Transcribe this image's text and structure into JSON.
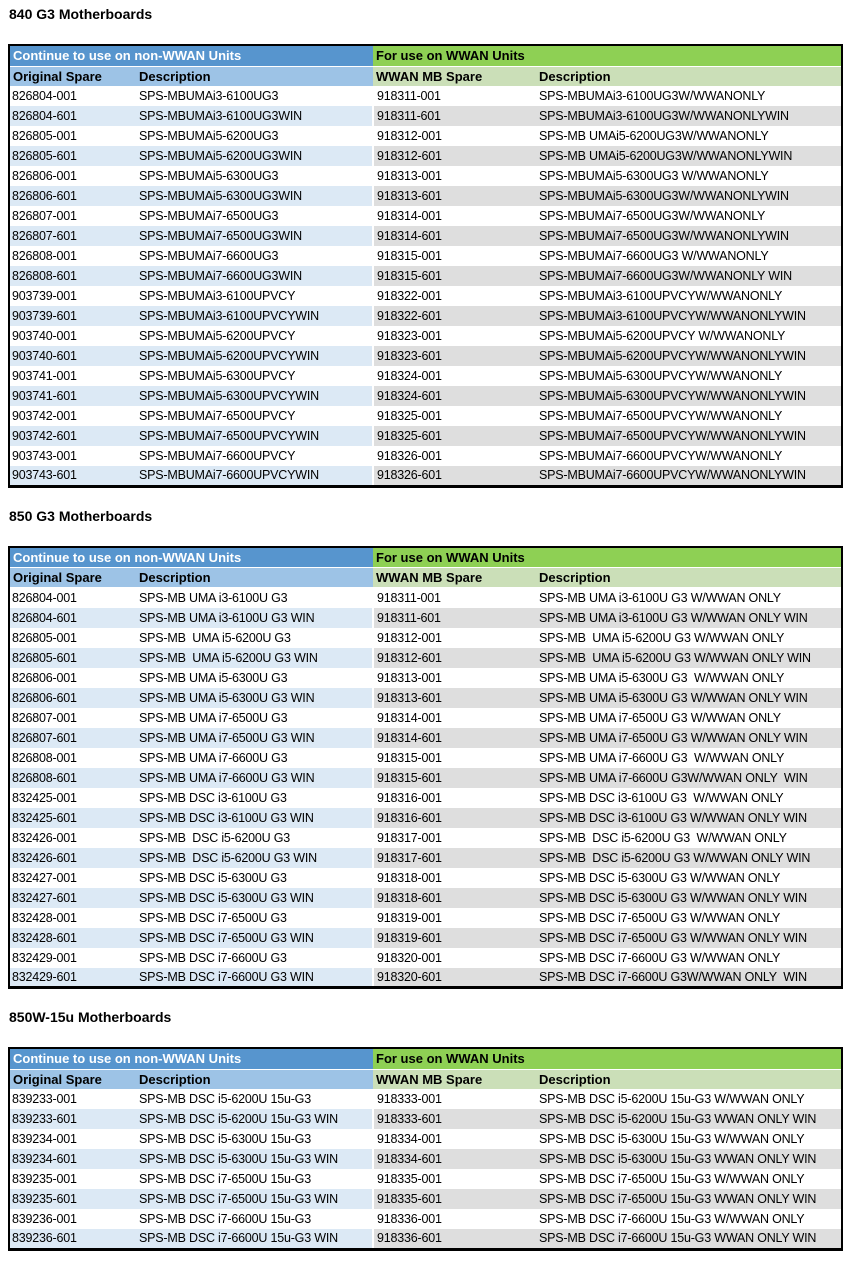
{
  "colors": {
    "header_blue": "#5795CE",
    "header_blue_light": "#9DC3E6",
    "header_green": "#8ED054",
    "header_green_light": "#CBDFB8",
    "band_blue": "#DCE9F5",
    "band_gray": "#DEDEDE",
    "border_black": "#000000"
  },
  "table_headers": {
    "left_group": "Continue to use on non-WWAN Units",
    "right_group": "For use on WWAN Units",
    "original_spare": "Original Spare",
    "description": "Description",
    "wwan_mb_spare": "WWAN MB Spare",
    "description2": "Description"
  },
  "sections": [
    {
      "title": "840 G3 Motherboards",
      "rows": [
        [
          "826804-001",
          "SPS-MBUMAi3-6100UG3",
          "918311-001",
          "SPS-MBUMAi3-6100UG3W/WWANONLY"
        ],
        [
          "826804-601",
          "SPS-MBUMAi3-6100UG3WIN",
          "918311-601",
          "SPS-MBUMAi3-6100UG3W/WWANONLYWIN"
        ],
        [
          "826805-001",
          "SPS-MBUMAi5-6200UG3",
          "918312-001",
          "SPS-MB UMAi5-6200UG3W/WWANONLY"
        ],
        [
          "826805-601",
          "SPS-MBUMAi5-6200UG3WIN",
          "918312-601",
          "SPS-MB UMAi5-6200UG3W/WWANONLYWIN"
        ],
        [
          "826806-001",
          "SPS-MBUMAi5-6300UG3",
          "918313-001",
          "SPS-MBUMAi5-6300UG3 W/WWANONLY"
        ],
        [
          "826806-601",
          "SPS-MBUMAi5-6300UG3WIN",
          "918313-601",
          "SPS-MBUMAi5-6300UG3W/WWANONLYWIN"
        ],
        [
          "826807-001",
          "SPS-MBUMAi7-6500UG3",
          "918314-001",
          "SPS-MBUMAi7-6500UG3W/WWANONLY"
        ],
        [
          "826807-601",
          "SPS-MBUMAi7-6500UG3WIN",
          "918314-601",
          "SPS-MBUMAi7-6500UG3W/WWANONLYWIN"
        ],
        [
          "826808-001",
          "SPS-MBUMAi7-6600UG3",
          "918315-001",
          "SPS-MBUMAi7-6600UG3 W/WWANONLY"
        ],
        [
          "826808-601",
          "SPS-MBUMAi7-6600UG3WIN",
          "918315-601",
          "SPS-MBUMAi7-6600UG3W/WWANONLY WIN"
        ],
        [
          "903739-001",
          "SPS-MBUMAi3-6100UPVCY",
          "918322-001",
          "SPS-MBUMAi3-6100UPVCYW/WWANONLY"
        ],
        [
          "903739-601",
          "SPS-MBUMAi3-6100UPVCYWIN",
          "918322-601",
          "SPS-MBUMAi3-6100UPVCYW/WWANONLYWIN"
        ],
        [
          "903740-001",
          "SPS-MBUMAi5-6200UPVCY",
          "918323-001",
          "SPS-MBUMAi5-6200UPVCY W/WWANONLY"
        ],
        [
          "903740-601",
          "SPS-MBUMAi5-6200UPVCYWIN",
          "918323-601",
          "SPS-MBUMAi5-6200UPVCYW/WWANONLYWIN"
        ],
        [
          "903741-001",
          "SPS-MBUMAi5-6300UPVCY",
          "918324-001",
          "SPS-MBUMAi5-6300UPVCYW/WWANONLY"
        ],
        [
          "903741-601",
          "SPS-MBUMAi5-6300UPVCYWIN",
          "918324-601",
          "SPS-MBUMAi5-6300UPVCYW/WWANONLYWIN"
        ],
        [
          "903742-001",
          "SPS-MBUMAi7-6500UPVCY",
          "918325-001",
          "SPS-MBUMAi7-6500UPVCYW/WWANONLY"
        ],
        [
          "903742-601",
          "SPS-MBUMAi7-6500UPVCYWIN",
          "918325-601",
          "SPS-MBUMAi7-6500UPVCYW/WWANONLYWIN"
        ],
        [
          "903743-001",
          "SPS-MBUMAi7-6600UPVCY",
          "918326-001",
          "SPS-MBUMAi7-6600UPVCYW/WWANONLY"
        ],
        [
          "903743-601",
          "SPS-MBUMAi7-6600UPVCYWIN",
          "918326-601",
          "SPS-MBUMAi7-6600UPVCYW/WWANONLYWIN"
        ]
      ]
    },
    {
      "title": "850 G3 Motherboards",
      "rows": [
        [
          "826804-001",
          "SPS-MB UMA i3-6100U G3",
          "918311-001",
          "SPS-MB UMA i3-6100U G3 W/WWAN ONLY"
        ],
        [
          "826804-601",
          "SPS-MB UMA i3-6100U G3 WIN",
          "918311-601",
          "SPS-MB UMA i3-6100U G3 W/WWAN ONLY WIN"
        ],
        [
          "826805-001",
          "SPS-MB  UMA i5-6200U G3",
          "918312-001",
          "SPS-MB  UMA i5-6200U G3 W/WWAN ONLY"
        ],
        [
          "826805-601",
          "SPS-MB  UMA i5-6200U G3 WIN",
          "918312-601",
          "SPS-MB  UMA i5-6200U G3 W/WWAN ONLY WIN"
        ],
        [
          "826806-001",
          "SPS-MB UMA i5-6300U G3",
          "918313-001",
          "SPS-MB UMA i5-6300U G3  W/WWAN ONLY"
        ],
        [
          "826806-601",
          "SPS-MB UMA i5-6300U G3 WIN",
          "918313-601",
          "SPS-MB UMA i5-6300U G3 W/WWAN ONLY WIN"
        ],
        [
          "826807-001",
          "SPS-MB UMA i7-6500U G3",
          "918314-001",
          "SPS-MB UMA i7-6500U G3 W/WWAN ONLY"
        ],
        [
          "826807-601",
          "SPS-MB UMA i7-6500U G3 WIN",
          "918314-601",
          "SPS-MB UMA i7-6500U G3 W/WWAN ONLY WIN"
        ],
        [
          "826808-001",
          "SPS-MB UMA i7-6600U G3",
          "918315-001",
          "SPS-MB UMA i7-6600U G3  W/WWAN ONLY"
        ],
        [
          "826808-601",
          "SPS-MB UMA i7-6600U G3 WIN",
          "918315-601",
          "SPS-MB UMA i7-6600U G3W/WWAN ONLY  WIN"
        ],
        [
          "832425-001",
          "SPS-MB DSC i3-6100U G3",
          "918316-001",
          "SPS-MB DSC i3-6100U G3  W/WWAN ONLY"
        ],
        [
          "832425-601",
          "SPS-MB DSC i3-6100U G3 WIN",
          "918316-601",
          "SPS-MB DSC i3-6100U G3 W/WWAN ONLY WIN"
        ],
        [
          "832426-001",
          "SPS-MB  DSC i5-6200U G3",
          "918317-001",
          "SPS-MB  DSC i5-6200U G3  W/WWAN ONLY"
        ],
        [
          "832426-601",
          "SPS-MB  DSC i5-6200U G3 WIN",
          "918317-601",
          "SPS-MB  DSC i5-6200U G3 W/WWAN ONLY WIN"
        ],
        [
          "832427-001",
          "SPS-MB DSC i5-6300U G3",
          "918318-001",
          "SPS-MB DSC i5-6300U G3 W/WWAN ONLY"
        ],
        [
          "832427-601",
          "SPS-MB DSC i5-6300U G3 WIN",
          "918318-601",
          "SPS-MB DSC i5-6300U G3 W/WWAN ONLY WIN"
        ],
        [
          "832428-001",
          "SPS-MB DSC i7-6500U G3",
          "918319-001",
          "SPS-MB DSC i7-6500U G3 W/WWAN ONLY"
        ],
        [
          "832428-601",
          "SPS-MB DSC i7-6500U G3 WIN",
          "918319-601",
          "SPS-MB DSC i7-6500U G3 W/WWAN ONLY WIN"
        ],
        [
          "832429-001",
          "SPS-MB DSC i7-6600U G3",
          "918320-001",
          "SPS-MB DSC i7-6600U G3 W/WWAN ONLY"
        ],
        [
          "832429-601",
          "SPS-MB DSC i7-6600U G3 WIN",
          "918320-601",
          "SPS-MB DSC i7-6600U G3W/WWAN ONLY  WIN"
        ]
      ]
    },
    {
      "title": "850W-15u Motherboards",
      "rows": [
        [
          "839233-001",
          "SPS-MB DSC i5-6200U 15u-G3",
          "918333-001",
          "SPS-MB DSC i5-6200U 15u-G3 W/WWAN ONLY"
        ],
        [
          "839233-601",
          "SPS-MB DSC i5-6200U 15u-G3 WIN",
          "918333-601",
          "SPS-MB DSC i5-6200U 15u-G3 WWAN ONLY WIN"
        ],
        [
          "839234-001",
          "SPS-MB DSC i5-6300U 15u-G3",
          "918334-001",
          "SPS-MB DSC i5-6300U 15u-G3 W/WWAN ONLY"
        ],
        [
          "839234-601",
          "SPS-MB DSC i5-6300U 15u-G3 WIN",
          "918334-601",
          "SPS-MB DSC i5-6300U 15u-G3 WWAN ONLY WIN"
        ],
        [
          "839235-001",
          "SPS-MB DSC i7-6500U 15u-G3",
          "918335-001",
          "SPS-MB DSC i7-6500U 15u-G3 W/WWAN ONLY"
        ],
        [
          "839235-601",
          "SPS-MB DSC i7-6500U 15u-G3 WIN",
          "918335-601",
          "SPS-MB DSC i7-6500U 15u-G3 WWAN ONLY WIN"
        ],
        [
          "839236-001",
          "SPS-MB DSC i7-6600U 15u-G3",
          "918336-001",
          "SPS-MB DSC i7-6600U 15u-G3 W/WWAN ONLY"
        ],
        [
          "839236-601",
          "SPS-MB DSC i7-6600U 15u-G3 WIN",
          "918336-601",
          "SPS-MB DSC i7-6600U 15u-G3 WWAN ONLY WIN"
        ]
      ]
    }
  ]
}
